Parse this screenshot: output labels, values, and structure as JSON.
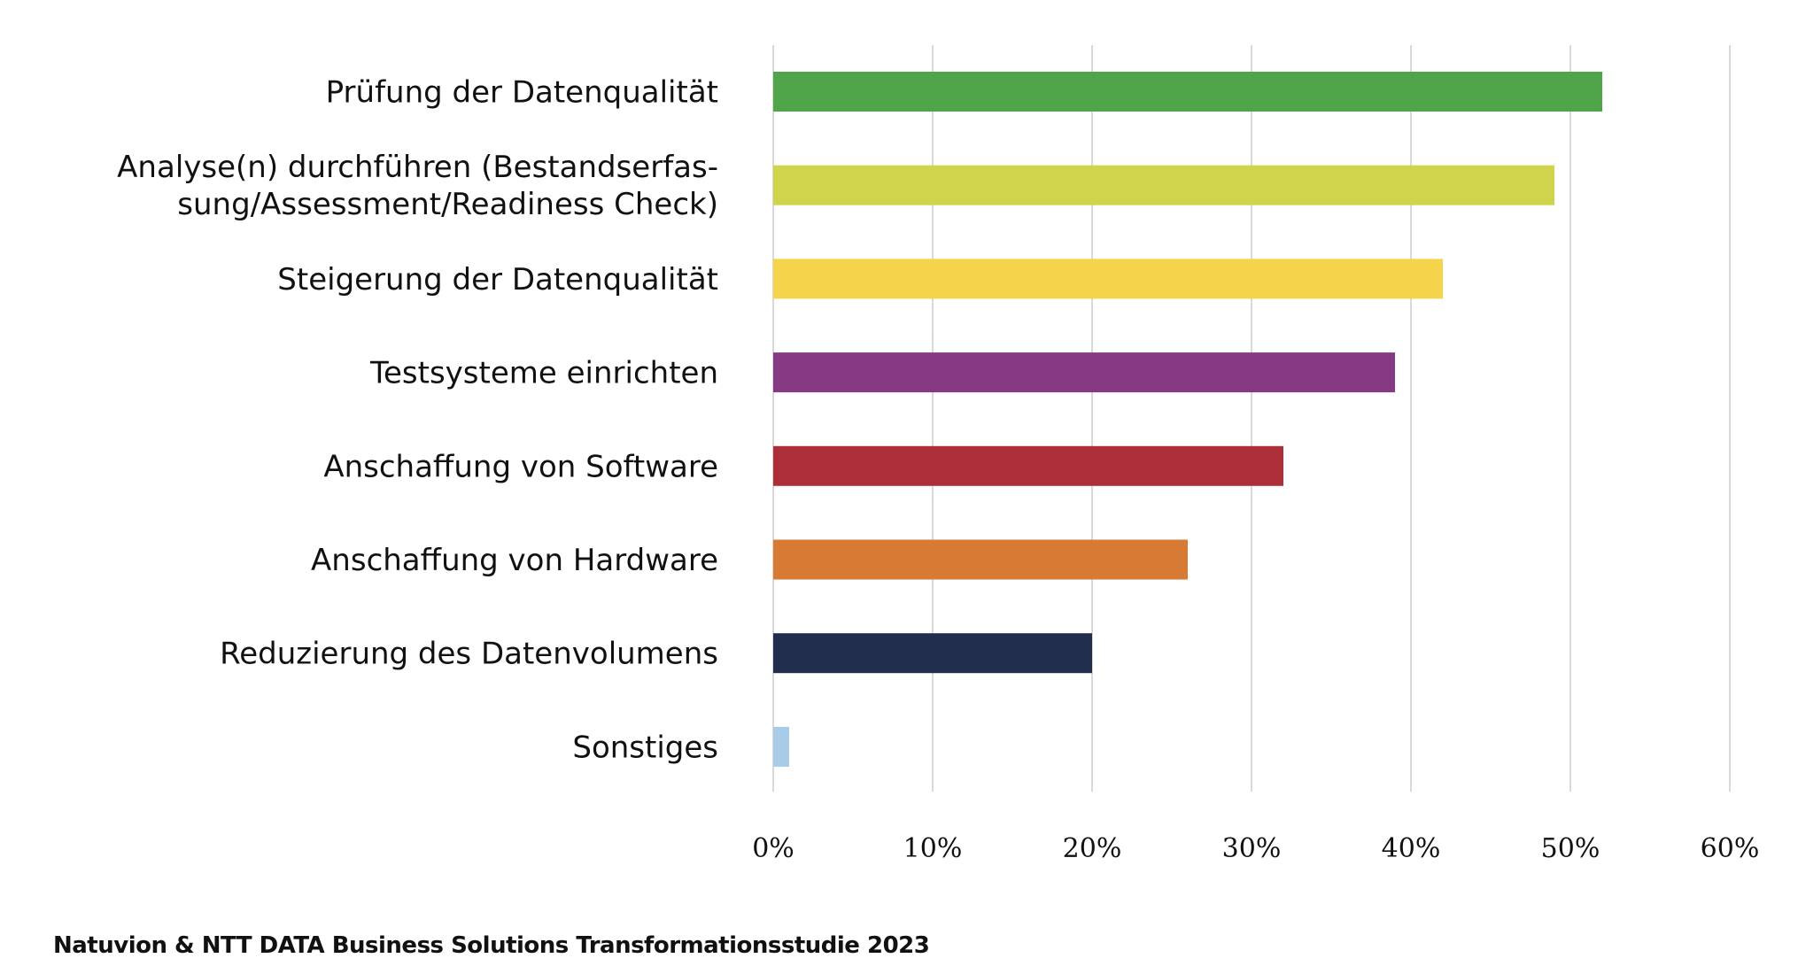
{
  "chart_data": {
    "type": "bar",
    "orientation": "horizontal",
    "title": "",
    "xlabel": "",
    "ylabel": "",
    "categories": [
      [
        "Prüfung der Datenqualität"
      ],
      [
        "Analyse(n) durchführen (Bestandserfas-",
        "sung/Assessment/Readiness Check)"
      ],
      [
        "Steigerung der Datenqualität"
      ],
      [
        "Testsysteme einrichten"
      ],
      [
        "Anschaffung von Software"
      ],
      [
        "Anschaffung von Hardware"
      ],
      [
        "Reduzierung des Datenvolumens"
      ],
      [
        "Sonstiges"
      ]
    ],
    "values": [
      52,
      49,
      42,
      39,
      32,
      26,
      20,
      1
    ],
    "colors": [
      "#50a44a",
      "#cfd44a",
      "#f5d34a",
      "#873a84",
      "#ad2f3a",
      "#d77a34",
      "#212d4d",
      "#a8cbe8"
    ],
    "xlim": [
      0,
      60
    ],
    "xticks": [
      0,
      10,
      20,
      30,
      40,
      50,
      60
    ],
    "xtick_labels": [
      "0%",
      "10%",
      "20%",
      "30%",
      "40%",
      "50%",
      "60%"
    ],
    "grid": true,
    "gridline_color": "#d9d9d9",
    "legend": "none"
  },
  "footer": {
    "source": "Natuvion & NTT DATA Business Solutions Transformationsstudie 2023"
  }
}
